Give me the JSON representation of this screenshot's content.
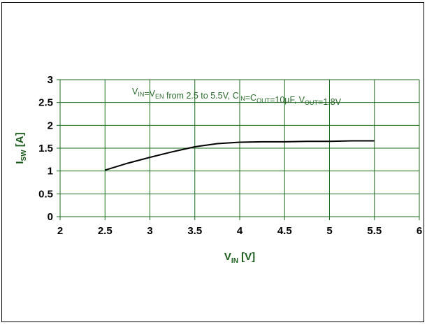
{
  "chart_data": {
    "type": "line",
    "xlabel_main": "V",
    "xlabel_sub": "IN",
    "xlabel_unit": " [V]",
    "ylabel_main": "I",
    "ylabel_sub": "SW",
    "ylabel_unit": " [A]",
    "annotation_parts": [
      {
        "t": "V",
        "sub": false
      },
      {
        "t": "IN",
        "sub": true
      },
      {
        "t": "=V",
        "sub": false
      },
      {
        "t": "EN",
        "sub": true
      },
      {
        "t": " from 2.5 to 5.5V, C",
        "sub": false
      },
      {
        "t": "IN",
        "sub": true
      },
      {
        "t": "=C",
        "sub": false
      },
      {
        "t": "OUT",
        "sub": true
      },
      {
        "t": "=10µF, V",
        "sub": false
      },
      {
        "t": "OUT",
        "sub": true
      },
      {
        "t": "=1.8V",
        "sub": false
      }
    ],
    "xlim": [
      2,
      6
    ],
    "ylim": [
      0,
      3
    ],
    "xticks": [
      "2",
      "2.5",
      "3",
      "3.5",
      "4",
      "4.5",
      "5",
      "5.5",
      "6"
    ],
    "yticks": [
      "0",
      "0.5",
      "1",
      "1.5",
      "2",
      "2.5",
      "3"
    ],
    "grid": true,
    "grid_color": "#1f6b1f",
    "line_color": "#000000",
    "series": [
      {
        "x": [
          2.5,
          2.75,
          3.0,
          3.25,
          3.5,
          3.75,
          4.0,
          4.25,
          4.5,
          4.75,
          5.0,
          5.25,
          5.5
        ],
        "y": [
          1.02,
          1.17,
          1.3,
          1.42,
          1.53,
          1.6,
          1.63,
          1.64,
          1.64,
          1.65,
          1.65,
          1.66,
          1.66
        ]
      }
    ]
  }
}
